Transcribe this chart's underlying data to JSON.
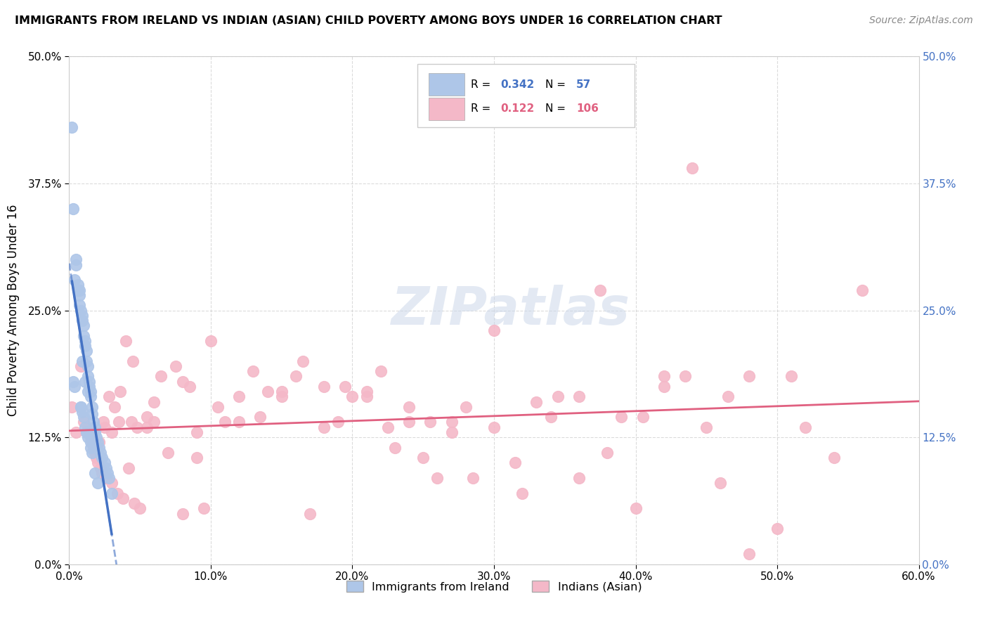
{
  "title": "IMMIGRANTS FROM IRELAND VS INDIAN (ASIAN) CHILD POVERTY AMONG BOYS UNDER 16 CORRELATION CHART",
  "source": "Source: ZipAtlas.com",
  "ylabel": "Child Poverty Among Boys Under 16",
  "xlabel_ticks": [
    "0.0%",
    "10.0%",
    "20.0%",
    "30.0%",
    "40.0%",
    "50.0%",
    "60.0%"
  ],
  "xlabel_vals": [
    0.0,
    0.1,
    0.2,
    0.3,
    0.4,
    0.5,
    0.6
  ],
  "ylabel_ticks": [
    "0.0%",
    "12.5%",
    "25.0%",
    "37.5%",
    "50.0%"
  ],
  "ylabel_vals": [
    0.0,
    0.125,
    0.25,
    0.375,
    0.5
  ],
  "xlim": [
    0.0,
    0.6
  ],
  "ylim": [
    0.0,
    0.5
  ],
  "ireland_R": 0.342,
  "ireland_N": 57,
  "indian_R": 0.122,
  "indian_N": 106,
  "ireland_color": "#aec6e8",
  "indian_color": "#f4b8c8",
  "ireland_line_color": "#4472c4",
  "indian_line_color": "#e06080",
  "watermark": "ZIPatlas",
  "ireland_scatter_x": [
    0.002,
    0.003,
    0.004,
    0.005,
    0.006,
    0.007,
    0.007,
    0.008,
    0.008,
    0.009,
    0.009,
    0.01,
    0.01,
    0.011,
    0.011,
    0.012,
    0.012,
    0.013,
    0.013,
    0.014,
    0.014,
    0.015,
    0.015,
    0.016,
    0.016,
    0.017,
    0.018,
    0.018,
    0.019,
    0.02,
    0.021,
    0.022,
    0.023,
    0.025,
    0.026,
    0.027,
    0.028,
    0.03,
    0.003,
    0.005,
    0.008,
    0.009,
    0.01,
    0.011,
    0.012,
    0.013,
    0.015,
    0.016,
    0.018,
    0.02,
    0.004,
    0.006,
    0.007,
    0.009,
    0.011,
    0.013,
    0.015
  ],
  "ireland_scatter_y": [
    0.43,
    0.35,
    0.175,
    0.295,
    0.275,
    0.265,
    0.255,
    0.25,
    0.155,
    0.245,
    0.24,
    0.235,
    0.225,
    0.22,
    0.215,
    0.21,
    0.2,
    0.195,
    0.185,
    0.18,
    0.175,
    0.17,
    0.165,
    0.155,
    0.148,
    0.14,
    0.135,
    0.13,
    0.125,
    0.12,
    0.115,
    0.11,
    0.105,
    0.1,
    0.095,
    0.09,
    0.085,
    0.07,
    0.18,
    0.3,
    0.155,
    0.15,
    0.145,
    0.135,
    0.13,
    0.125,
    0.115,
    0.11,
    0.09,
    0.08,
    0.28,
    0.27,
    0.27,
    0.2,
    0.18,
    0.17,
    0.12
  ],
  "indian_scatter_x": [
    0.002,
    0.005,
    0.008,
    0.01,
    0.012,
    0.013,
    0.015,
    0.016,
    0.017,
    0.018,
    0.019,
    0.02,
    0.021,
    0.022,
    0.023,
    0.024,
    0.025,
    0.026,
    0.028,
    0.03,
    0.032,
    0.034,
    0.036,
    0.038,
    0.04,
    0.042,
    0.044,
    0.046,
    0.048,
    0.05,
    0.055,
    0.06,
    0.065,
    0.07,
    0.075,
    0.08,
    0.085,
    0.09,
    0.095,
    0.1,
    0.11,
    0.12,
    0.13,
    0.14,
    0.15,
    0.16,
    0.17,
    0.18,
    0.19,
    0.2,
    0.21,
    0.22,
    0.23,
    0.24,
    0.25,
    0.26,
    0.27,
    0.28,
    0.3,
    0.32,
    0.34,
    0.36,
    0.38,
    0.4,
    0.42,
    0.44,
    0.46,
    0.48,
    0.5,
    0.52,
    0.54,
    0.56,
    0.03,
    0.045,
    0.06,
    0.09,
    0.12,
    0.15,
    0.18,
    0.21,
    0.24,
    0.27,
    0.3,
    0.33,
    0.36,
    0.39,
    0.42,
    0.45,
    0.48,
    0.51,
    0.035,
    0.055,
    0.08,
    0.105,
    0.135,
    0.165,
    0.195,
    0.225,
    0.255,
    0.285,
    0.315,
    0.345,
    0.375,
    0.405,
    0.435,
    0.465
  ],
  "indian_scatter_y": [
    0.155,
    0.13,
    0.195,
    0.14,
    0.13,
    0.135,
    0.125,
    0.12,
    0.115,
    0.11,
    0.105,
    0.1,
    0.12,
    0.095,
    0.09,
    0.14,
    0.135,
    0.085,
    0.165,
    0.08,
    0.155,
    0.07,
    0.17,
    0.065,
    0.22,
    0.095,
    0.14,
    0.06,
    0.135,
    0.055,
    0.145,
    0.14,
    0.185,
    0.11,
    0.195,
    0.05,
    0.175,
    0.105,
    0.055,
    0.22,
    0.14,
    0.14,
    0.19,
    0.17,
    0.165,
    0.185,
    0.05,
    0.175,
    0.14,
    0.165,
    0.17,
    0.19,
    0.115,
    0.14,
    0.105,
    0.085,
    0.14,
    0.155,
    0.23,
    0.07,
    0.145,
    0.165,
    0.11,
    0.055,
    0.185,
    0.39,
    0.08,
    0.185,
    0.035,
    0.135,
    0.105,
    0.27,
    0.13,
    0.2,
    0.16,
    0.13,
    0.165,
    0.17,
    0.135,
    0.165,
    0.155,
    0.13,
    0.135,
    0.16,
    0.085,
    0.145,
    0.175,
    0.135,
    0.01,
    0.185,
    0.14,
    0.135,
    0.18,
    0.155,
    0.145,
    0.2,
    0.175,
    0.135,
    0.14,
    0.085,
    0.1,
    0.165,
    0.27,
    0.145,
    0.185,
    0.165
  ]
}
